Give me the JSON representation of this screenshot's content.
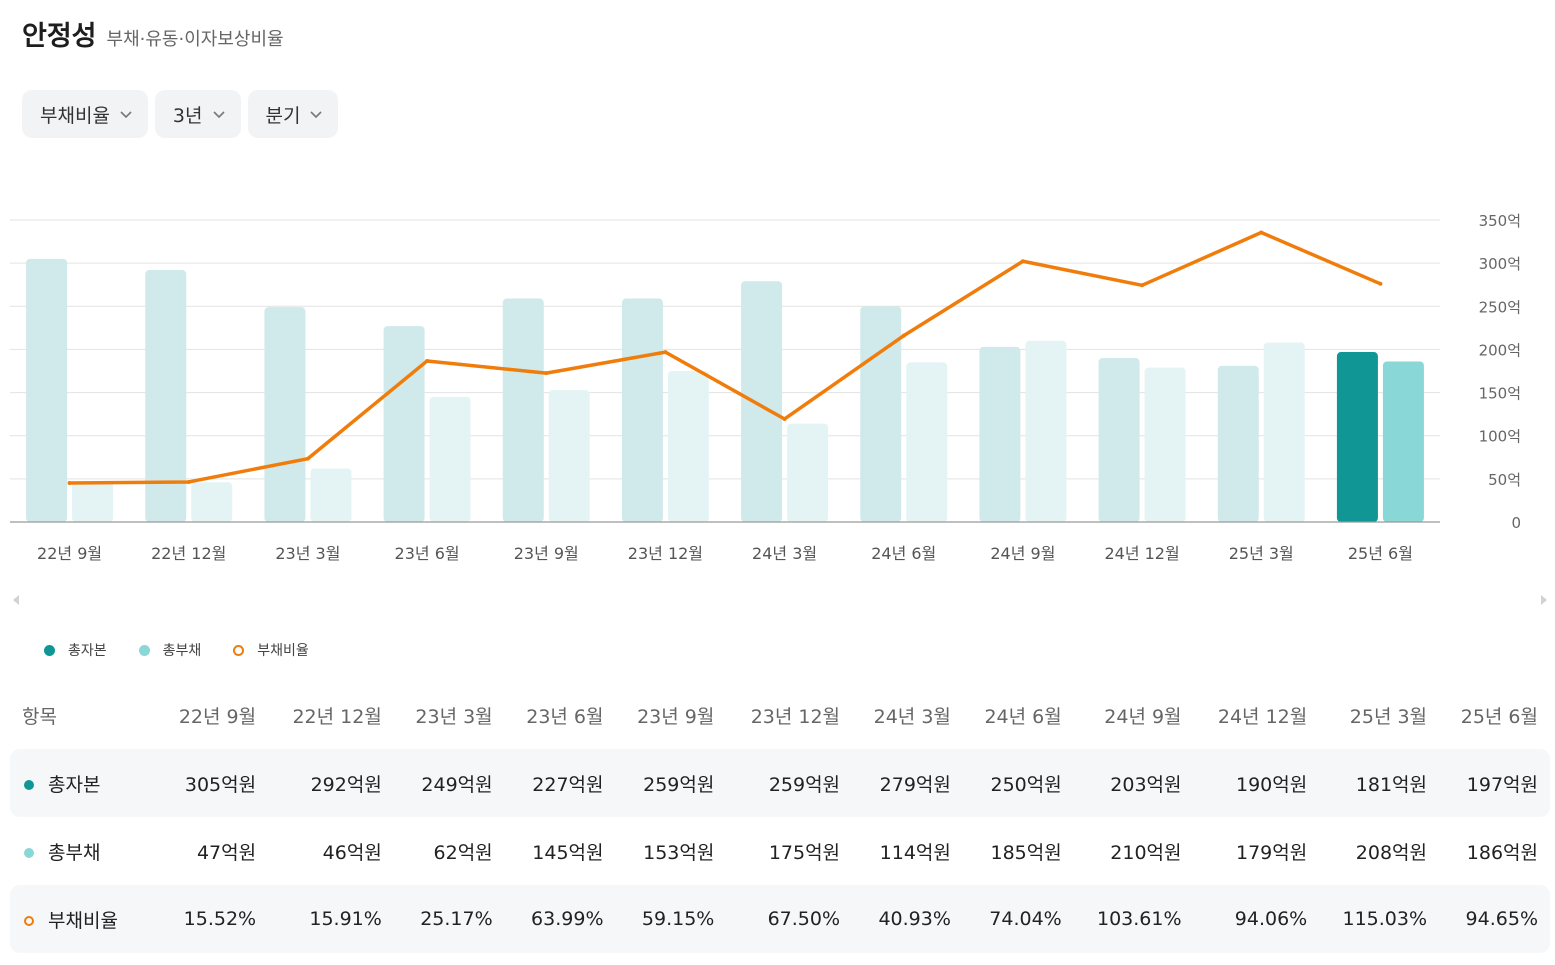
{
  "header": {
    "title": "안정성",
    "subtitle": "부채·유동·이자보상비율"
  },
  "filters": [
    {
      "label": "부채비율"
    },
    {
      "label": "3년"
    },
    {
      "label": "분기"
    }
  ],
  "chart_data": {
    "type": "bar",
    "categories": [
      "22년 9월",
      "22년 12월",
      "23년 3월",
      "23년 6월",
      "23년 9월",
      "23년 12월",
      "24년 3월",
      "24년 6월",
      "24년 9월",
      "24년 12월",
      "25년 3월",
      "25년 6월"
    ],
    "series": [
      {
        "name": "총자본",
        "axis": "left",
        "values": [
          305,
          292,
          249,
          227,
          259,
          259,
          279,
          250,
          203,
          190,
          181,
          197
        ]
      },
      {
        "name": "총부채",
        "axis": "left",
        "values": [
          47,
          46,
          62,
          145,
          153,
          175,
          114,
          185,
          210,
          179,
          208,
          186
        ]
      },
      {
        "name": "부채비율",
        "type": "line",
        "axis": "right",
        "values": [
          15.52,
          15.91,
          25.17,
          63.99,
          59.15,
          67.5,
          40.93,
          74.04,
          103.61,
          94.06,
          115.03,
          94.65
        ]
      }
    ],
    "yticks": [
      "350억",
      "300억",
      "250억",
      "200억",
      "150억",
      "100억",
      "50억",
      "0"
    ],
    "ylim": [
      0,
      350
    ],
    "y2lim": [
      0,
      120
    ],
    "highlight_index": 11,
    "colors": {
      "equity_dim": "#d0e9ea",
      "equity_active": "#119696",
      "debt_dim": "#e4f4f5",
      "debt_active": "#8ad7d7",
      "ratio_line": "#f07d0b",
      "grid": "#e3e3e3",
      "axis": "#999999"
    }
  },
  "legend": [
    {
      "label": "총자본",
      "color": "#119696"
    },
    {
      "label": "총부채",
      "color": "#8ad7d7"
    },
    {
      "label": "부채비율",
      "color": "#f07d0b"
    }
  ],
  "table": {
    "header_label": "항목",
    "columns": [
      "22년 9월",
      "22년 12월",
      "23년 3월",
      "23년 6월",
      "23년 9월",
      "23년 12월",
      "24년 3월",
      "24년 6월",
      "24년 9월",
      "24년 12월",
      "25년 3월",
      "25년 6월"
    ],
    "rows": [
      {
        "label": "총자본",
        "values": [
          "305억원",
          "292억원",
          "249억원",
          "227억원",
          "259억원",
          "259억원",
          "279억원",
          "250억원",
          "203억원",
          "190억원",
          "181억원",
          "197억원"
        ]
      },
      {
        "label": "총부채",
        "values": [
          "47억원",
          "46억원",
          "62억원",
          "145억원",
          "153억원",
          "175억원",
          "114억원",
          "185억원",
          "210억원",
          "179억원",
          "208억원",
          "186억원"
        ]
      },
      {
        "label": "부채비율",
        "values": [
          "15.52%",
          "15.91%",
          "25.17%",
          "63.99%",
          "59.15%",
          "67.50%",
          "40.93%",
          "74.04%",
          "103.61%",
          "94.06%",
          "115.03%",
          "94.65%"
        ]
      }
    ]
  }
}
